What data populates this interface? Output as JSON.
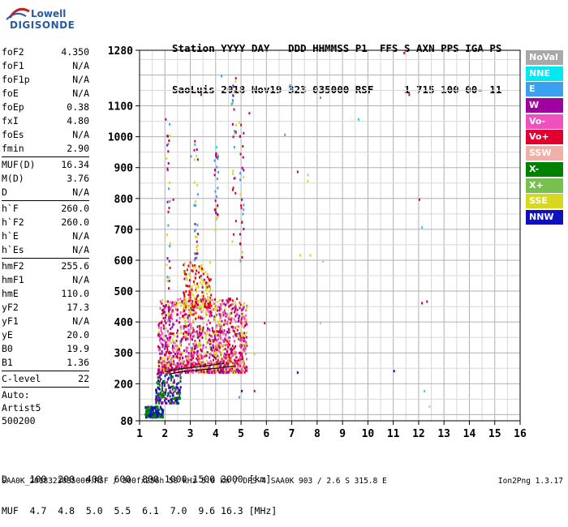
{
  "logo": {
    "line1": "Lowell",
    "line2": "DIGISONDE"
  },
  "header": {
    "row1": "Station YYYY DAY   DDD HHMMSS P1  FFS S AXN PPS IGA PS",
    "row2": "SaoLuis 2018 Nov19 323 035000 RSF     1 715 100 00- 11"
  },
  "params": {
    "group1": [
      {
        "k": "foF2",
        "v": "4.350"
      },
      {
        "k": "foF1",
        "v": "N/A"
      },
      {
        "k": "foF1p",
        "v": "N/A"
      },
      {
        "k": "foE",
        "v": "N/A"
      },
      {
        "k": "foEp",
        "v": "0.38"
      },
      {
        "k": "fxI",
        "v": "4.80"
      },
      {
        "k": "foEs",
        "v": "N/A"
      },
      {
        "k": "fmin",
        "v": "2.90"
      }
    ],
    "group2": [
      {
        "k": "MUF(D)",
        "v": "16.34"
      },
      {
        "k": "M(D)",
        "v": "3.76"
      },
      {
        "k": "D",
        "v": "N/A"
      }
    ],
    "group3": [
      {
        "k": "h`F",
        "v": "260.0"
      },
      {
        "k": "h`F2",
        "v": "260.0"
      },
      {
        "k": "h`E",
        "v": "N/A"
      },
      {
        "k": "h`Es",
        "v": "N/A"
      }
    ],
    "group4": [
      {
        "k": "hmF2",
        "v": "255.6"
      },
      {
        "k": "hmF1",
        "v": "N/A"
      },
      {
        "k": "hmE",
        "v": "110.0"
      },
      {
        "k": "yF2",
        "v": "17.3"
      },
      {
        "k": "yF1",
        "v": "N/A"
      },
      {
        "k": "yE",
        "v": "20.0"
      },
      {
        "k": "B0",
        "v": "19.9"
      },
      {
        "k": "B1",
        "v": "1.36"
      }
    ],
    "group5": [
      {
        "k": "C-level",
        "v": "22"
      }
    ],
    "auto": [
      "Auto:",
      "Artist5",
      "500200"
    ]
  },
  "legend": [
    {
      "label": "NoVal",
      "color": "#a8a8a8"
    },
    {
      "label": "NNE",
      "color": "#00e8f0"
    },
    {
      "label": "E",
      "color": "#3aa0f0"
    },
    {
      "label": "W",
      "color": "#a000a0"
    },
    {
      "label": "Vo-",
      "color": "#f050c0"
    },
    {
      "label": "Vo+",
      "color": "#e00030"
    },
    {
      "label": "SSW",
      "color": "#f0b0a8"
    },
    {
      "label": "X-",
      "color": "#008000"
    },
    {
      "label": "X+",
      "color": "#78c050"
    },
    {
      "label": "SSE",
      "color": "#d8d820"
    },
    {
      "label": "NNW",
      "color": "#1010c0"
    }
  ],
  "bottom": {
    "d_row": "D    100  200  400  600  800 1000 1500 3000 [km]",
    "muf_row": "MUF  4.7  4.8  5.0  5.5  6.1  7.0  9.6 16.3 [MHz]"
  },
  "footer": {
    "left": "SAA0K_2018323035000.RSF / 300fx256h 50 kHz 5.0 km / DPS-4 SAA0K 903 / 2.6 S 315.8 E",
    "right": "Ion2Png 1.3.17"
  },
  "chart_data": {
    "type": "scatter",
    "title": "",
    "xlabel": "",
    "ylabel": "",
    "xlim": [
      1,
      16
    ],
    "ylim": [
      80,
      1280
    ],
    "x_ticks": [
      1,
      2,
      3,
      4,
      5,
      6,
      7,
      8,
      9,
      10,
      11,
      12,
      13,
      14,
      15,
      16
    ],
    "y_ticks": [
      80,
      200,
      300,
      400,
      500,
      600,
      700,
      800,
      900,
      1000,
      1100,
      1280
    ],
    "grid": true,
    "traces": {
      "o_trace": [
        [
          2.0,
          240
        ],
        [
          2.5,
          247
        ],
        [
          3.0,
          252
        ],
        [
          3.5,
          257
        ],
        [
          4.0,
          262
        ],
        [
          4.35,
          266
        ]
      ],
      "x_trace": [
        [
          2.2,
          232
        ],
        [
          2.6,
          238
        ],
        [
          3.0,
          242
        ],
        [
          3.5,
          246
        ],
        [
          4.0,
          250
        ],
        [
          4.4,
          254
        ],
        [
          4.8,
          258
        ]
      ]
    },
    "clusters": [
      {
        "x_range": [
          1.7,
          5.2
        ],
        "y_range": [
          240,
          480
        ],
        "density": "high",
        "colors": [
          "#e00030",
          "#a000a0",
          "#d8d820",
          "#f050c0"
        ]
      },
      {
        "x_range": [
          2.7,
          3.8
        ],
        "y_range": [
          450,
          600
        ],
        "density": "medium",
        "colors": [
          "#d8d820",
          "#e00030"
        ]
      },
      {
        "x_range": [
          1.6,
          2.6
        ],
        "y_range": [
          140,
          240
        ],
        "density": "medium",
        "colors": [
          "#1010c0",
          "#a000a0",
          "#008000"
        ]
      },
      {
        "x_range": [
          1.2,
          1.9
        ],
        "y_range": [
          95,
          130
        ],
        "density": "medium",
        "colors": [
          "#008000",
          "#1010c0"
        ]
      }
    ],
    "sparse_points": [
      {
        "x": 2.0,
        "y": 1060,
        "c": "#a000a0"
      },
      {
        "x": 2.1,
        "y": 980,
        "c": "#3aa0f0"
      },
      {
        "x": 2.3,
        "y": 800,
        "c": "#e00030"
      },
      {
        "x": 3.0,
        "y": 940,
        "c": "#3aa0f0"
      },
      {
        "x": 3.4,
        "y": 1140,
        "c": "#a000a0"
      },
      {
        "x": 4.0,
        "y": 970,
        "c": "#00e8f0"
      },
      {
        "x": 4.2,
        "y": 1200,
        "c": "#3aa0f0"
      },
      {
        "x": 4.6,
        "y": 1110,
        "c": "#3aa0f0"
      },
      {
        "x": 4.9,
        "y": 1050,
        "c": "#d8d820"
      },
      {
        "x": 5.3,
        "y": 1080,
        "c": "#a000a0"
      },
      {
        "x": 6.7,
        "y": 1010,
        "c": "#3aa0f0"
      },
      {
        "x": 6.9,
        "y": 1170,
        "c": "#3aa0f0"
      },
      {
        "x": 7.2,
        "y": 890,
        "c": "#a000a0"
      },
      {
        "x": 7.6,
        "y": 880,
        "c": "#f0b0a8"
      },
      {
        "x": 7.6,
        "y": 860,
        "c": "#d8d820"
      },
      {
        "x": 8.1,
        "y": 1130,
        "c": "#3aa0f0"
      },
      {
        "x": 8.2,
        "y": 600,
        "c": "#f0b0a8"
      },
      {
        "x": 7.3,
        "y": 620,
        "c": "#d8d820"
      },
      {
        "x": 7.7,
        "y": 620,
        "c": "#d8d820"
      },
      {
        "x": 7.2,
        "y": 240,
        "c": "#1010c0"
      },
      {
        "x": 8.1,
        "y": 400,
        "c": "#f0b0a8"
      },
      {
        "x": 9.6,
        "y": 1060,
        "c": "#00e8f0"
      },
      {
        "x": 11.0,
        "y": 245,
        "c": "#1010c0"
      },
      {
        "x": 11.4,
        "y": 1275,
        "c": "#e00030"
      },
      {
        "x": 11.6,
        "y": 1140,
        "c": "#e00030"
      },
      {
        "x": 12.0,
        "y": 800,
        "c": "#e00030"
      },
      {
        "x": 12.1,
        "y": 710,
        "c": "#00e8f0"
      },
      {
        "x": 12.1,
        "y": 465,
        "c": "#e00030"
      },
      {
        "x": 12.3,
        "y": 470,
        "c": "#a000a0"
      },
      {
        "x": 12.2,
        "y": 180,
        "c": "#00e8f0"
      },
      {
        "x": 12.4,
        "y": 130,
        "c": "#f0b0a8"
      },
      {
        "x": 5.2,
        "y": 450,
        "c": "#d8d820"
      },
      {
        "x": 5.5,
        "y": 300,
        "c": "#d8d820"
      },
      {
        "x": 5.9,
        "y": 400,
        "c": "#e00030"
      },
      {
        "x": 5.5,
        "y": 180,
        "c": "#e00030"
      },
      {
        "x": 4.9,
        "y": 160,
        "c": "#3aa0f0"
      },
      {
        "x": 5.0,
        "y": 180,
        "c": "#1010c0"
      },
      {
        "x": 3.8,
        "y": 320,
        "c": "#1010c0"
      }
    ]
  }
}
